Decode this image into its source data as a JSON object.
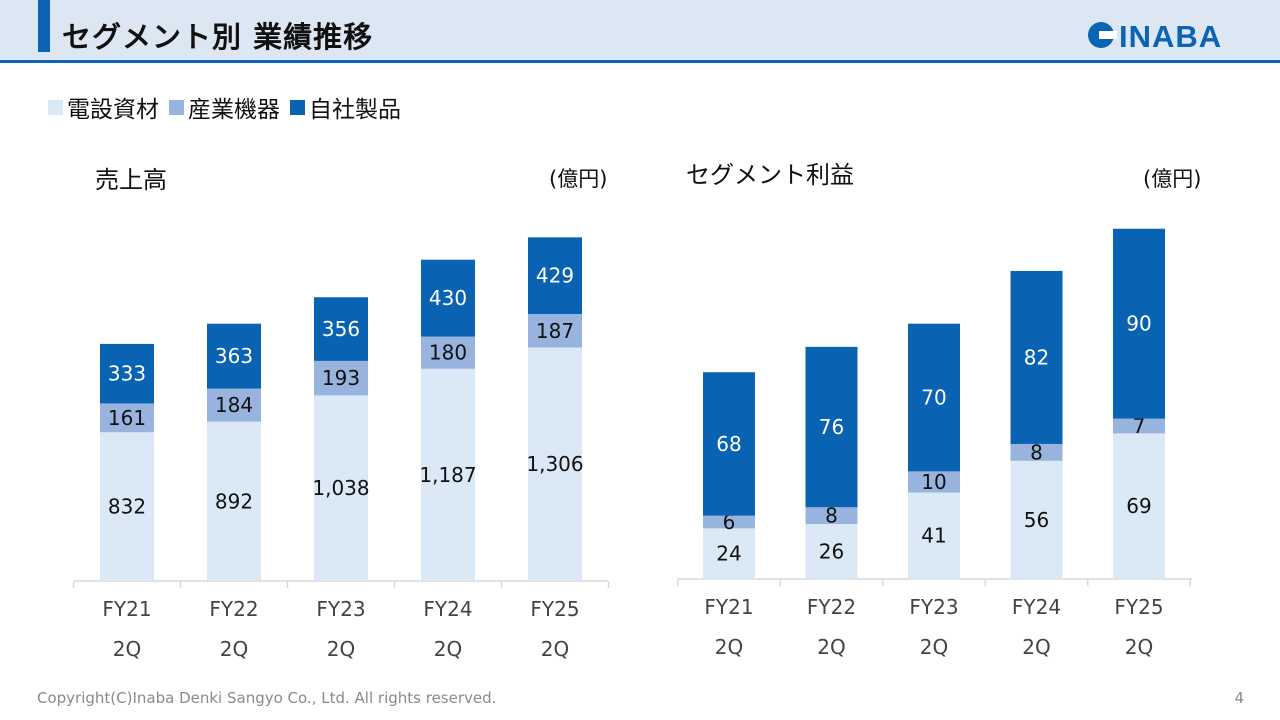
{
  "header": {
    "title": "セグメント別 業績推移",
    "logo_text": "INABA"
  },
  "legend": [
    {
      "label": "電設資材",
      "color": "#dbe8f6"
    },
    {
      "label": "産業機器",
      "color": "#99b3df"
    },
    {
      "label": "自社製品",
      "color": "#0a62b3"
    }
  ],
  "chart_data": [
    {
      "type": "bar",
      "stacked": true,
      "title": "売上高",
      "unit": "(億円)",
      "categories": [
        [
          "FY21",
          "2Q"
        ],
        [
          "FY22",
          "2Q"
        ],
        [
          "FY23",
          "2Q"
        ],
        [
          "FY24",
          "2Q"
        ],
        [
          "FY25",
          "2Q"
        ]
      ],
      "series": [
        {
          "name": "電設資材",
          "values": [
            832,
            892,
            1038,
            1187,
            1306
          ],
          "labels": [
            "832",
            "892",
            "1,038",
            "1,187",
            "1,306"
          ]
        },
        {
          "name": "産業機器",
          "values": [
            161,
            184,
            193,
            180,
            187
          ],
          "labels": [
            "161",
            "184",
            "193",
            "180",
            "187"
          ]
        },
        {
          "name": "自社製品",
          "values": [
            333,
            363,
            356,
            430,
            429
          ],
          "labels": [
            "333",
            "363",
            "356",
            "430",
            "429"
          ]
        }
      ],
      "ylim": [
        0,
        2000
      ]
    },
    {
      "type": "bar",
      "stacked": true,
      "title": "セグメント利益",
      "unit": "(億円)",
      "categories": [
        [
          "FY21",
          "2Q"
        ],
        [
          "FY22",
          "2Q"
        ],
        [
          "FY23",
          "2Q"
        ],
        [
          "FY24",
          "2Q"
        ],
        [
          "FY25",
          "2Q"
        ]
      ],
      "series": [
        {
          "name": "電設資材",
          "values": [
            24,
            26,
            41,
            56,
            69
          ],
          "labels": [
            "24",
            "26",
            "41",
            "56",
            "69"
          ]
        },
        {
          "name": "産業機器",
          "values": [
            6,
            8,
            10,
            8,
            7
          ],
          "labels": [
            "6",
            "8",
            "10",
            "8",
            "7"
          ]
        },
        {
          "name": "自社製品",
          "values": [
            68,
            76,
            70,
            82,
            90
          ],
          "labels": [
            "68",
            "76",
            "70",
            "82",
            "90"
          ]
        }
      ],
      "ylim": [
        0,
        180
      ]
    }
  ],
  "footer": {
    "copyright": "Copyright(C)Inaba Denki Sangyo Co., Ltd. All rights reserved.",
    "page": "4"
  }
}
